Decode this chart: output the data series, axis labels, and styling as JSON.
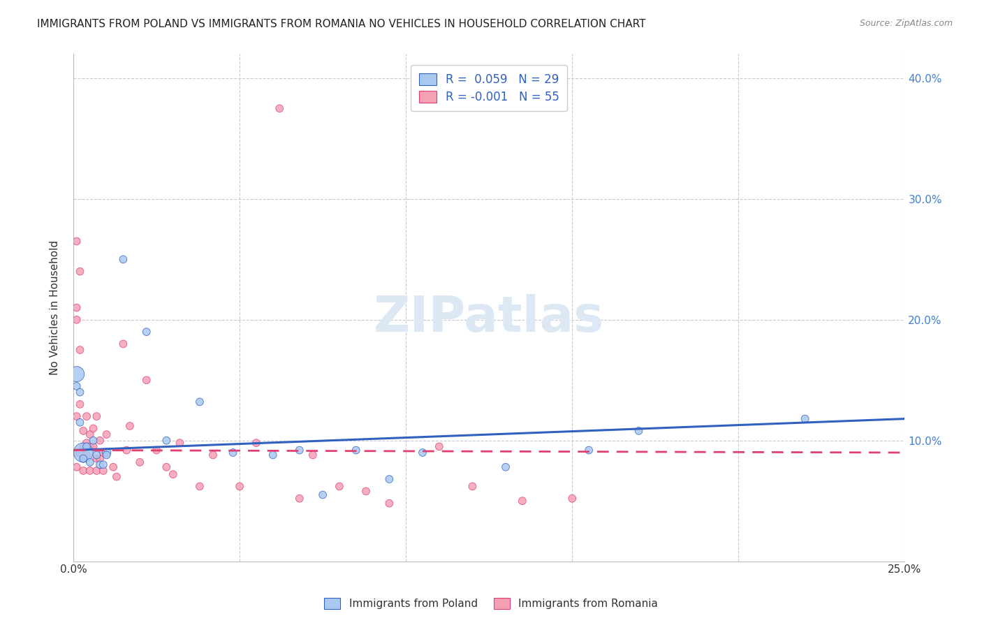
{
  "title": "IMMIGRANTS FROM POLAND VS IMMIGRANTS FROM ROMANIA NO VEHICLES IN HOUSEHOLD CORRELATION CHART",
  "source": "Source: ZipAtlas.com",
  "ylabel": "No Vehicles in Household",
  "xlim": [
    0.0,
    0.25
  ],
  "ylim": [
    0.0,
    0.42
  ],
  "xticks": [
    0.0,
    0.05,
    0.1,
    0.15,
    0.2,
    0.25
  ],
  "yticks": [
    0.1,
    0.2,
    0.3,
    0.4
  ],
  "xticklabels": [
    "0.0%",
    "",
    "",
    "",
    "",
    "25.0%"
  ],
  "yticklabels_right": [
    "10.0%",
    "20.0%",
    "30.0%",
    "40.0%"
  ],
  "poland_R": 0.059,
  "poland_N": 29,
  "romania_R": -0.001,
  "romania_N": 55,
  "poland_color": "#a8c8f0",
  "romania_color": "#f5a0b5",
  "poland_line_color": "#3060c0",
  "romania_line_color": "#e04070",
  "legend_poland_label": "Immigrants from Poland",
  "legend_romania_label": "Immigrants from Romania",
  "poland_x": [
    0.001,
    0.001,
    0.002,
    0.002,
    0.003,
    0.003,
    0.004,
    0.005,
    0.006,
    0.007,
    0.008,
    0.009,
    0.01,
    0.01,
    0.015,
    0.022,
    0.028,
    0.038,
    0.048,
    0.06,
    0.068,
    0.075,
    0.085,
    0.095,
    0.105,
    0.13,
    0.155,
    0.17,
    0.22
  ],
  "poland_y": [
    0.155,
    0.145,
    0.14,
    0.115,
    0.09,
    0.085,
    0.095,
    0.082,
    0.1,
    0.088,
    0.08,
    0.08,
    0.09,
    0.088,
    0.25,
    0.19,
    0.1,
    0.132,
    0.09,
    0.088,
    0.092,
    0.055,
    0.092,
    0.068,
    0.09,
    0.078,
    0.092,
    0.108,
    0.118
  ],
  "poland_sizes": [
    250,
    60,
    60,
    60,
    400,
    60,
    60,
    60,
    60,
    60,
    60,
    60,
    80,
    60,
    60,
    60,
    60,
    60,
    60,
    60,
    60,
    60,
    60,
    60,
    60,
    60,
    60,
    60,
    60
  ],
  "romania_x": [
    0.001,
    0.001,
    0.001,
    0.001,
    0.001,
    0.001,
    0.002,
    0.002,
    0.002,
    0.002,
    0.003,
    0.003,
    0.003,
    0.003,
    0.004,
    0.004,
    0.004,
    0.005,
    0.005,
    0.005,
    0.006,
    0.006,
    0.007,
    0.007,
    0.007,
    0.008,
    0.008,
    0.009,
    0.009,
    0.01,
    0.012,
    0.013,
    0.015,
    0.016,
    0.017,
    0.02,
    0.022,
    0.025,
    0.028,
    0.03,
    0.032,
    0.038,
    0.042,
    0.05,
    0.055,
    0.062,
    0.068,
    0.072,
    0.08,
    0.088,
    0.095,
    0.11,
    0.12,
    0.135,
    0.15
  ],
  "romania_y": [
    0.265,
    0.21,
    0.2,
    0.12,
    0.09,
    0.078,
    0.24,
    0.175,
    0.13,
    0.09,
    0.108,
    0.095,
    0.085,
    0.075,
    0.12,
    0.098,
    0.088,
    0.105,
    0.095,
    0.075,
    0.11,
    0.095,
    0.12,
    0.085,
    0.075,
    0.1,
    0.085,
    0.09,
    0.075,
    0.105,
    0.078,
    0.07,
    0.18,
    0.092,
    0.112,
    0.082,
    0.15,
    0.092,
    0.078,
    0.072,
    0.098,
    0.062,
    0.088,
    0.062,
    0.098,
    0.375,
    0.052,
    0.088,
    0.062,
    0.058,
    0.048,
    0.095,
    0.062,
    0.05,
    0.052
  ],
  "romania_sizes": [
    60,
    60,
    60,
    60,
    60,
    60,
    60,
    60,
    60,
    60,
    60,
    60,
    60,
    60,
    60,
    60,
    60,
    60,
    60,
    60,
    60,
    60,
    60,
    60,
    60,
    60,
    60,
    60,
    60,
    60,
    60,
    60,
    60,
    60,
    60,
    60,
    60,
    60,
    60,
    60,
    60,
    60,
    60,
    60,
    60,
    60,
    60,
    60,
    60,
    60,
    60,
    60,
    60,
    60,
    60
  ],
  "poland_trend_x": [
    0.0,
    0.25
  ],
  "poland_trend_y": [
    0.092,
    0.118
  ],
  "romania_trend_x": [
    0.0,
    0.25
  ],
  "romania_trend_y": [
    0.092,
    0.09
  ],
  "background_color": "#ffffff",
  "grid_color": "#c8c8d8",
  "watermark_text": "ZIPatlas",
  "watermark_color": "#dde8f5"
}
